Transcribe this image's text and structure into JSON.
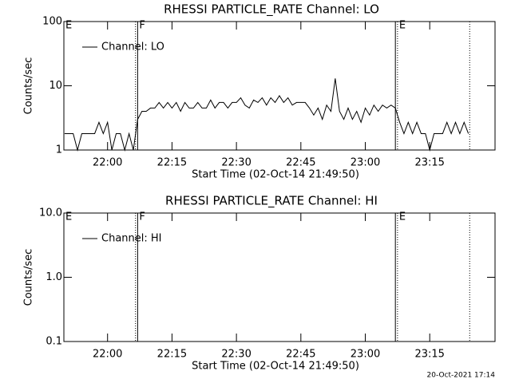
{
  "chart_data": [
    {
      "type": "line",
      "title": "RHESSI PARTICLE_RATE Channel: LO",
      "ylabel": "Counts/sec",
      "xlabel": "Start Time (02-Oct-14 21:49:50)",
      "log_y": true,
      "ylim": [
        1,
        100
      ],
      "yticks": [
        1,
        10,
        100
      ],
      "xlim": [
        1309.83,
        1410.2
      ],
      "xticks": [
        {
          "value": 1320,
          "label": "22:00"
        },
        {
          "value": 1335,
          "label": "22:15"
        },
        {
          "value": 1350,
          "label": "22:30"
        },
        {
          "value": 1365,
          "label": "22:45"
        },
        {
          "value": 1380,
          "label": "23:00"
        },
        {
          "value": 1395,
          "label": "23:15"
        }
      ],
      "flags": [
        {
          "label": "E",
          "x": 1309.83,
          "style": "solid"
        },
        {
          "label": "F",
          "x": 1327.0,
          "style": "solid"
        },
        {
          "label": "E",
          "x": 1387.5,
          "style": "dotted"
        }
      ],
      "extra_lines": [
        {
          "x": 1326.5,
          "style": "dotted"
        },
        {
          "x": 1387.0,
          "style": "solid"
        },
        {
          "x": 1404.3,
          "style": "dotted"
        }
      ],
      "x": [
        1310,
        1311,
        1312,
        1313,
        1314,
        1315,
        1316,
        1317,
        1318,
        1319,
        1320,
        1321,
        1322,
        1323,
        1324,
        1325,
        1326,
        1327,
        1328,
        1329,
        1330,
        1331,
        1332,
        1333,
        1334,
        1335,
        1336,
        1337,
        1338,
        1339,
        1340,
        1341,
        1342,
        1343,
        1344,
        1345,
        1346,
        1347,
        1348,
        1349,
        1350,
        1351,
        1352,
        1353,
        1354,
        1355,
        1356,
        1357,
        1358,
        1359,
        1360,
        1361,
        1362,
        1363,
        1364,
        1365,
        1366,
        1367,
        1368,
        1369,
        1370,
        1371,
        1372,
        1373,
        1374,
        1375,
        1376,
        1377,
        1378,
        1379,
        1380,
        1381,
        1382,
        1383,
        1384,
        1385,
        1386,
        1387,
        1388,
        1389,
        1390,
        1391,
        1392,
        1393,
        1394,
        1395,
        1396,
        1397,
        1398,
        1399,
        1400,
        1401,
        1402,
        1403,
        1404
      ],
      "series": [
        {
          "name": "Channel: LO",
          "color": "#000000",
          "values": [
            1.8,
            1.8,
            1.8,
            1.0,
            1.8,
            1.8,
            1.8,
            1.8,
            2.7,
            1.8,
            2.7,
            1.0,
            1.8,
            1.8,
            1.0,
            1.8,
            1.0,
            3.0,
            4.0,
            4.0,
            4.5,
            4.5,
            5.5,
            4.5,
            5.5,
            4.5,
            5.5,
            4.0,
            5.5,
            4.5,
            4.5,
            5.5,
            4.5,
            4.5,
            6.0,
            4.5,
            5.5,
            5.5,
            4.5,
            5.5,
            5.5,
            6.5,
            5.0,
            4.5,
            6.0,
            5.5,
            6.5,
            5.0,
            6.5,
            5.5,
            7.0,
            5.5,
            6.5,
            5.0,
            5.5,
            5.5,
            5.5,
            4.5,
            3.5,
            4.5,
            3.0,
            5.0,
            4.0,
            13.0,
            4.0,
            3.0,
            4.5,
            3.0,
            4.0,
            2.7,
            4.5,
            3.5,
            5.0,
            4.0,
            5.0,
            4.5,
            5.0,
            4.5,
            2.7,
            1.8,
            2.7,
            1.8,
            2.7,
            1.8,
            1.8,
            1.0,
            1.8,
            1.8,
            1.8,
            2.7,
            1.8,
            2.7,
            1.8,
            2.7,
            1.8
          ]
        }
      ]
    },
    {
      "type": "line",
      "title": "RHESSI PARTICLE_RATE Channel: HI",
      "ylabel": "Counts/sec",
      "xlabel": "Start Time (02-Oct-14 21:49:50)",
      "log_y": true,
      "ylim": [
        0.1,
        10
      ],
      "yticks": [
        {
          "value": 0.1,
          "label": "0.1"
        },
        {
          "value": 1,
          "label": "1.0"
        },
        {
          "value": 10,
          "label": "10.0"
        }
      ],
      "xlim": [
        1309.83,
        1410.2
      ],
      "xticks": [
        {
          "value": 1320,
          "label": "22:00"
        },
        {
          "value": 1335,
          "label": "22:15"
        },
        {
          "value": 1350,
          "label": "22:30"
        },
        {
          "value": 1365,
          "label": "22:45"
        },
        {
          "value": 1380,
          "label": "23:00"
        },
        {
          "value": 1395,
          "label": "23:15"
        }
      ],
      "flags": [
        {
          "label": "E",
          "x": 1309.83,
          "style": "solid"
        },
        {
          "label": "F",
          "x": 1327.0,
          "style": "solid"
        },
        {
          "label": "E",
          "x": 1387.5,
          "style": "dotted"
        }
      ],
      "extra_lines": [
        {
          "x": 1326.5,
          "style": "dotted"
        },
        {
          "x": 1387.0,
          "style": "solid"
        },
        {
          "x": 1404.3,
          "style": "dotted"
        }
      ],
      "series": [
        {
          "name": "Channel: HI",
          "color": "#000000"
        }
      ]
    }
  ],
  "footer": "20-Oct-2021 17:14"
}
